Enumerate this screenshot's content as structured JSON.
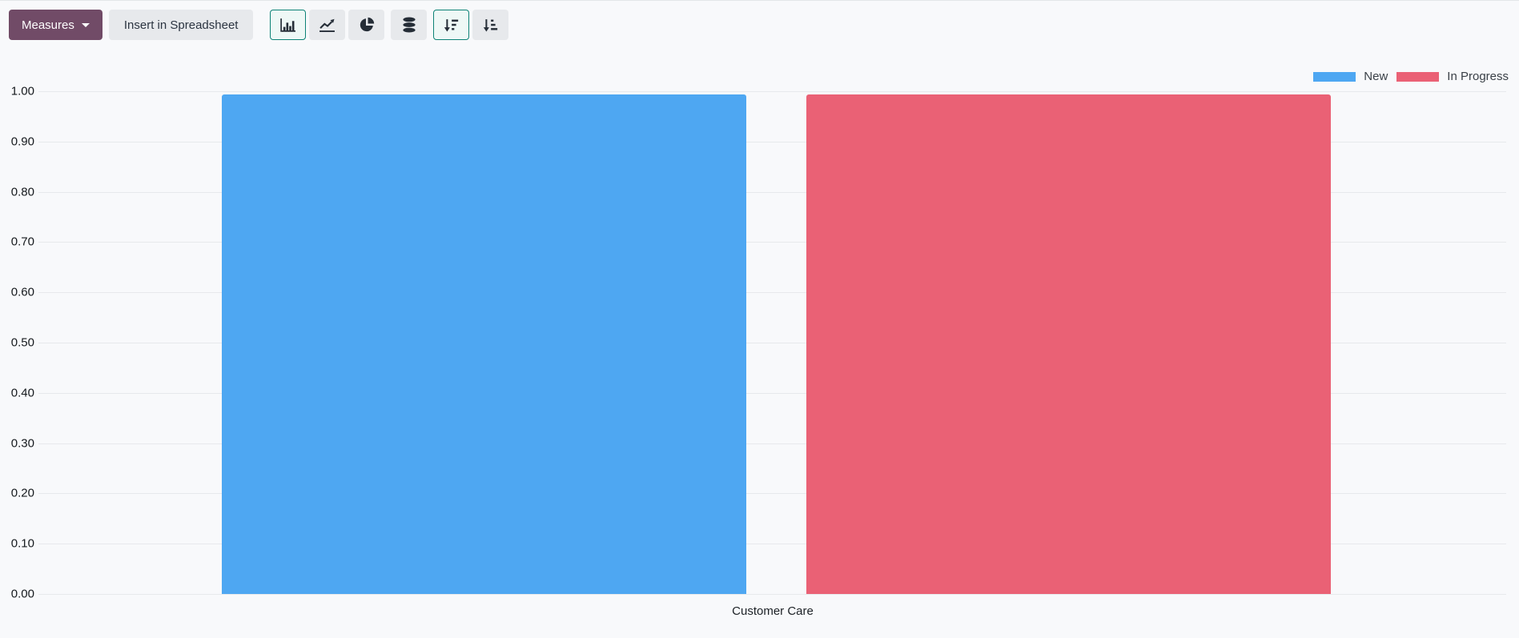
{
  "toolbar": {
    "measures": {
      "label": "Measures",
      "icon": "caret-down-icon"
    },
    "insert_in_spreadsheet": {
      "label": "Insert in Spreadsheet"
    },
    "chart_type_buttons": [
      {
        "id": "bar",
        "icon": "bar-chart-icon",
        "active": true
      },
      {
        "id": "line",
        "icon": "line-chart-icon",
        "active": false
      },
      {
        "id": "pie",
        "icon": "pie-chart-icon",
        "active": false
      }
    ],
    "stacked_button": {
      "icon": "database-icon",
      "active": false
    },
    "sort_buttons": [
      {
        "id": "descending",
        "icon": "sort-amount-desc-icon",
        "active": true
      },
      {
        "id": "ascending",
        "icon": "sort-amount-asc-icon",
        "active": false
      }
    ]
  },
  "colors": {
    "primary_button_bg": "#714B67",
    "secondary_button_bg": "#e7e9ec",
    "active_button_border": "#0c8276",
    "active_button_bg": "#eef8f6",
    "icon": "#252d37",
    "gridline": "#e7e9ec",
    "background": "#f8f9fb",
    "series_new": "#4EA7F2",
    "series_in_progress": "#EA6175"
  },
  "chart_data": {
    "type": "bar",
    "title": "",
    "xlabel": "",
    "ylabel": "",
    "categories": [
      "Customer Care"
    ],
    "series": [
      {
        "name": "New",
        "values": [
          1
        ],
        "color": "#4EA7F2"
      },
      {
        "name": "In Progress",
        "values": [
          1
        ],
        "color": "#EA6175"
      }
    ],
    "ylim": [
      0,
      1
    ],
    "yticks": [
      "0.00",
      "0.10",
      "0.20",
      "0.30",
      "0.40",
      "0.50",
      "0.60",
      "0.70",
      "0.80",
      "0.90",
      "1.00"
    ],
    "grid": true,
    "legend_position": "top-right"
  }
}
